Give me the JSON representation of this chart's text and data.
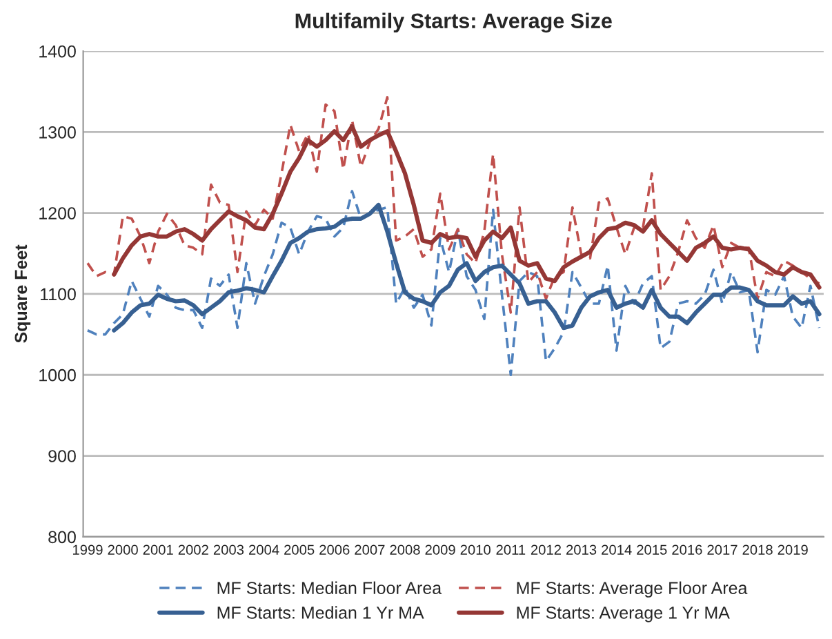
{
  "chart_data": {
    "type": "line",
    "title": "Multifamily Starts: Average Size",
    "ylabel": "Square Feet",
    "categories": [
      "1999",
      null,
      null,
      null,
      "2000",
      null,
      null,
      null,
      "2001",
      null,
      null,
      null,
      "2002",
      null,
      null,
      null,
      "2003",
      null,
      null,
      null,
      "2004",
      null,
      null,
      null,
      "2005",
      null,
      null,
      null,
      "2006",
      null,
      null,
      null,
      "2007",
      null,
      null,
      null,
      "2008",
      null,
      null,
      null,
      "2009",
      null,
      null,
      null,
      "2010",
      null,
      null,
      null,
      "2011",
      null,
      null,
      null,
      "2012",
      null,
      null,
      null,
      "2013",
      null,
      null,
      null,
      "2014",
      null,
      null,
      null,
      "2015",
      null,
      null,
      null,
      "2016",
      null,
      null,
      null,
      "2017",
      null,
      null,
      null,
      "2018",
      null,
      null,
      null,
      "2019",
      null,
      null,
      null
    ],
    "series": [
      {
        "name": "MF Starts: Median Floor Area",
        "color": "#4f81bd",
        "line_style": "dashed",
        "values": [
          1055,
          1050,
          1050,
          1064,
          1075,
          1116,
          1094,
          1072,
          1110,
          1099,
          1083,
          1080,
          1080,
          1058,
          1119,
          1110,
          1124,
          1058,
          1138,
          1088,
          1122,
          1149,
          1188,
          1182,
          1149,
          1177,
          1196,
          1193,
          1171,
          1182,
          1227,
          1193,
          1199,
          1204,
          1207,
          1088,
          1108,
          1083,
          1099,
          1061,
          1169,
          1127,
          1180,
          1122,
          1105,
          1069,
          1204,
          1099,
          1000,
          1116,
          1127,
          1122,
          1017,
          1033,
          1053,
          1127,
          1108,
          1088,
          1088,
          1135,
          1030,
          1110,
          1088,
          1113,
          1122,
          1033,
          1041,
          1088,
          1091,
          1088,
          1099,
          1130,
          1088,
          1127,
          1102,
          1105,
          1028,
          1105,
          1099,
          1122,
          1072,
          1058,
          1110,
          1058
        ]
      },
      {
        "name": "MF Starts: Average Floor Area",
        "color": "#c0504d",
        "line_style": "dashed",
        "values": [
          1138,
          1122,
          1127,
          1124,
          1196,
          1193,
          1171,
          1138,
          1177,
          1199,
          1185,
          1160,
          1157,
          1149,
          1235,
          1213,
          1210,
          1127,
          1202,
          1185,
          1204,
          1193,
          1249,
          1309,
          1276,
          1298,
          1251,
          1334,
          1326,
          1254,
          1315,
          1257,
          1287,
          1304,
          1343,
          1166,
          1171,
          1180,
          1146,
          1155,
          1224,
          1155,
          1180,
          1149,
          1138,
          1177,
          1273,
          1149,
          1077,
          1207,
          1114,
          1127,
          1094,
          1122,
          1127,
          1207,
          1149,
          1144,
          1213,
          1218,
          1182,
          1149,
          1182,
          1182,
          1249,
          1105,
          1122,
          1152,
          1191,
          1169,
          1157,
          1185,
          1133,
          1163,
          1157,
          1157,
          1094,
          1127,
          1122,
          1141,
          1135,
          1127,
          1119,
          1113
        ]
      },
      {
        "name": "MF Starts: Median 1 Yr MA",
        "color": "#376092",
        "line_style": "solid",
        "values": [
          null,
          null,
          null,
          1055,
          1064,
          1077,
          1086,
          1088,
          1099,
          1094,
          1091,
          1092,
          1086,
          1075,
          1083,
          1091,
          1102,
          1104,
          1107,
          1105,
          1102,
          1122,
          1141,
          1163,
          1169,
          1177,
          1180,
          1181,
          1183,
          1191,
          1193,
          1193,
          1199,
          1210,
          1177,
          1138,
          1102,
          1094,
          1091,
          1086,
          1102,
          1110,
          1130,
          1138,
          1116,
          1127,
          1133,
          1135,
          1124,
          1113,
          1088,
          1091,
          1091,
          1077,
          1058,
          1061,
          1083,
          1097,
          1102,
          1105,
          1083,
          1088,
          1091,
          1083,
          1105,
          1083,
          1072,
          1072,
          1064,
          1077,
          1088,
          1099,
          1099,
          1108,
          1108,
          1105,
          1091,
          1086,
          1086,
          1086,
          1097,
          1088,
          1091,
          1075
        ]
      },
      {
        "name": "MF Starts: Average 1 Yr MA",
        "color": "#953735",
        "line_style": "solid",
        "values": [
          null,
          null,
          null,
          1124,
          1144,
          1160,
          1171,
          1174,
          1171,
          1171,
          1177,
          1180,
          1174,
          1166,
          1180,
          1191,
          1202,
          1196,
          1191,
          1182,
          1180,
          1199,
          1224,
          1251,
          1268,
          1290,
          1282,
          1290,
          1301,
          1290,
          1307,
          1282,
          1290,
          1296,
          1301,
          1276,
          1249,
          1210,
          1166,
          1163,
          1174,
          1169,
          1171,
          1169,
          1146,
          1166,
          1177,
          1169,
          1182,
          1141,
          1135,
          1138,
          1119,
          1116,
          1133,
          1140,
          1146,
          1152,
          1169,
          1180,
          1182,
          1188,
          1185,
          1177,
          1191,
          1174,
          1163,
          1152,
          1141,
          1157,
          1163,
          1171,
          1157,
          1155,
          1157,
          1155,
          1141,
          1135,
          1127,
          1124,
          1133,
          1127,
          1124,
          1108
        ]
      }
    ],
    "ylim": [
      800,
      1400
    ],
    "yticks": [
      800,
      900,
      1000,
      1100,
      1200,
      1300,
      1400
    ],
    "grid": "y",
    "legend": "bottom"
  }
}
